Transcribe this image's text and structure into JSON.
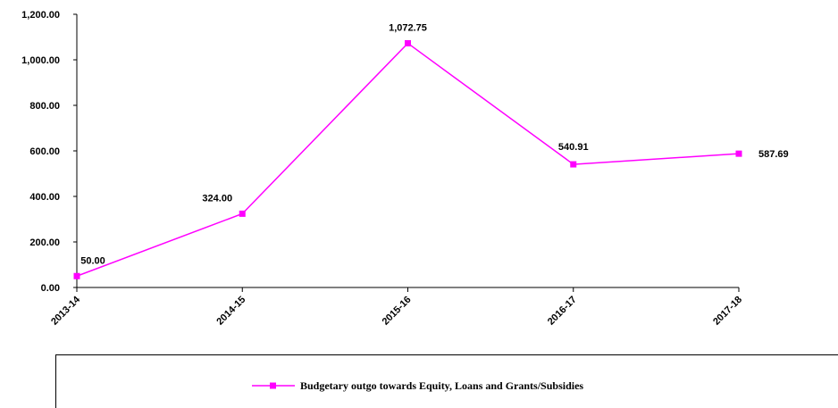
{
  "chart_data": {
    "type": "line",
    "categories": [
      "2013-14",
      "2014-15",
      "2015-16",
      "2016-17",
      "2017-18"
    ],
    "series": [
      {
        "name": "Budgetary outgo towards Equity, Loans and Grants/Subsidies",
        "values": [
          50.0,
          324.0,
          1072.75,
          540.91,
          587.69
        ],
        "data_labels": [
          "50.00",
          "324.00",
          "1,072.75",
          "540.91",
          "587.69"
        ],
        "color": "#ff00ff"
      }
    ],
    "y_ticks": [
      0,
      200,
      400,
      600,
      800,
      1000,
      1200
    ],
    "y_tick_labels": [
      "0.00",
      "200.00",
      "400.00",
      "600.00",
      "800.00",
      "1,000.00",
      "1,200.00"
    ],
    "ylim": [
      0,
      1200
    ],
    "grid": false,
    "legend_position": "bottom"
  }
}
